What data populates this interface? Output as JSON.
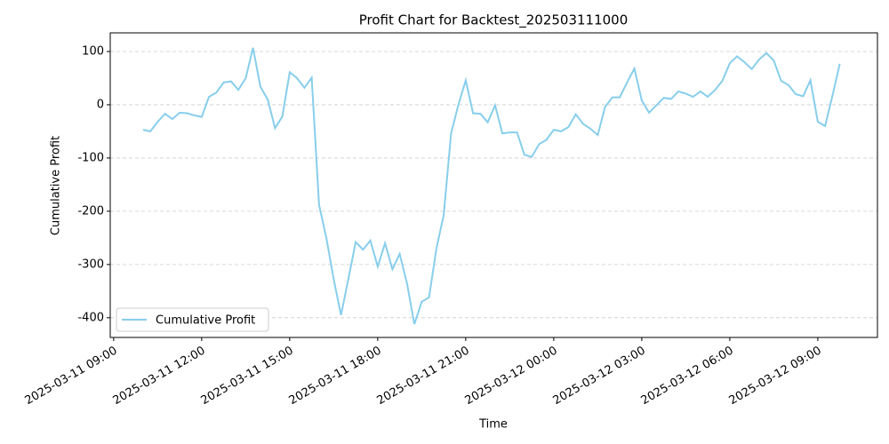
{
  "chart_data": {
    "type": "line",
    "title": "Profit Chart for Backtest_202503111000",
    "xlabel": "Time",
    "ylabel": "Cumulative Profit",
    "x": [
      "2025-03-11 10:00",
      "2025-03-11 10:15",
      "2025-03-11 10:30",
      "2025-03-11 10:45",
      "2025-03-11 11:00",
      "2025-03-11 11:15",
      "2025-03-11 11:30",
      "2025-03-11 11:45",
      "2025-03-11 12:00",
      "2025-03-11 12:15",
      "2025-03-11 12:30",
      "2025-03-11 12:45",
      "2025-03-11 13:00",
      "2025-03-11 13:15",
      "2025-03-11 13:30",
      "2025-03-11 13:45",
      "2025-03-11 14:00",
      "2025-03-11 14:15",
      "2025-03-11 14:30",
      "2025-03-11 14:45",
      "2025-03-11 15:00",
      "2025-03-11 15:15",
      "2025-03-11 15:30",
      "2025-03-11 15:45",
      "2025-03-11 16:00",
      "2025-03-11 16:15",
      "2025-03-11 16:30",
      "2025-03-11 16:45",
      "2025-03-11 17:00",
      "2025-03-11 17:15",
      "2025-03-11 17:30",
      "2025-03-11 17:45",
      "2025-03-11 18:00",
      "2025-03-11 18:15",
      "2025-03-11 18:30",
      "2025-03-11 18:45",
      "2025-03-11 19:00",
      "2025-03-11 19:15",
      "2025-03-11 19:30",
      "2025-03-11 19:45",
      "2025-03-11 20:00",
      "2025-03-11 20:15",
      "2025-03-11 20:30",
      "2025-03-11 20:45",
      "2025-03-11 21:00",
      "2025-03-11 21:15",
      "2025-03-11 21:30",
      "2025-03-11 21:45",
      "2025-03-11 22:00",
      "2025-03-11 22:15",
      "2025-03-11 22:30",
      "2025-03-11 22:45",
      "2025-03-11 23:00",
      "2025-03-11 23:15",
      "2025-03-11 23:30",
      "2025-03-11 23:45",
      "2025-03-12 00:00",
      "2025-03-12 00:15",
      "2025-03-12 00:30",
      "2025-03-12 00:45",
      "2025-03-12 01:00",
      "2025-03-12 01:15",
      "2025-03-12 01:30",
      "2025-03-12 01:45",
      "2025-03-12 02:00",
      "2025-03-12 02:15",
      "2025-03-12 02:30",
      "2025-03-12 02:45",
      "2025-03-12 03:00",
      "2025-03-12 03:15",
      "2025-03-12 03:30",
      "2025-03-12 03:45",
      "2025-03-12 04:00",
      "2025-03-12 04:15",
      "2025-03-12 04:30",
      "2025-03-12 04:45",
      "2025-03-12 05:00",
      "2025-03-12 05:15",
      "2025-03-12 05:30",
      "2025-03-12 05:45",
      "2025-03-12 06:00",
      "2025-03-12 06:15",
      "2025-03-12 06:30",
      "2025-03-12 06:45",
      "2025-03-12 07:00",
      "2025-03-12 07:15",
      "2025-03-12 07:30",
      "2025-03-12 07:45",
      "2025-03-12 08:00",
      "2025-03-12 08:15",
      "2025-03-12 08:30",
      "2025-03-12 08:45",
      "2025-03-12 09:00",
      "2025-03-12 09:15",
      "2025-03-12 09:30",
      "2025-03-12 09:45"
    ],
    "series": [
      {
        "name": "Cumulative Profit",
        "color": "#87ceeb",
        "values": [
          -47,
          -50,
          -32,
          -17,
          -27,
          -15,
          -16,
          -20,
          -23,
          15,
          23,
          42,
          44,
          28,
          50,
          107,
          34,
          10,
          -44,
          -22,
          61,
          50,
          32,
          51,
          -188,
          -250,
          -328,
          -395,
          -327,
          -258,
          -272,
          -255,
          -304,
          -260,
          -309,
          -280,
          -336,
          -412,
          -370,
          -362,
          -270,
          -207,
          -54,
          0,
          46,
          -16,
          -17,
          -33,
          -1,
          -54,
          -52,
          -52,
          -94,
          -98,
          -74,
          -66,
          -47,
          -50,
          -42,
          -18,
          -36,
          -45,
          -57,
          -4,
          14,
          14,
          42,
          68,
          8,
          -15,
          -1,
          13,
          11,
          25,
          21,
          15,
          25,
          15,
          28,
          45,
          78,
          91,
          80,
          67,
          85,
          97,
          83,
          45,
          37,
          20,
          16,
          46,
          -32,
          -40,
          17,
          77
        ]
      }
    ],
    "xlim": [
      "2025-03-11 08:53",
      "2025-03-12 11:02"
    ],
    "xticks": [
      "2025-03-11 09:00",
      "2025-03-11 12:00",
      "2025-03-11 15:00",
      "2025-03-11 18:00",
      "2025-03-11 21:00",
      "2025-03-12 00:00",
      "2025-03-12 03:00",
      "2025-03-12 06:00",
      "2025-03-12 09:00"
    ],
    "ylim": [
      -437,
      135
    ],
    "yticks": [
      -400,
      -300,
      -200,
      -100,
      0,
      100
    ],
    "grid": true,
    "legend": "lower left"
  }
}
